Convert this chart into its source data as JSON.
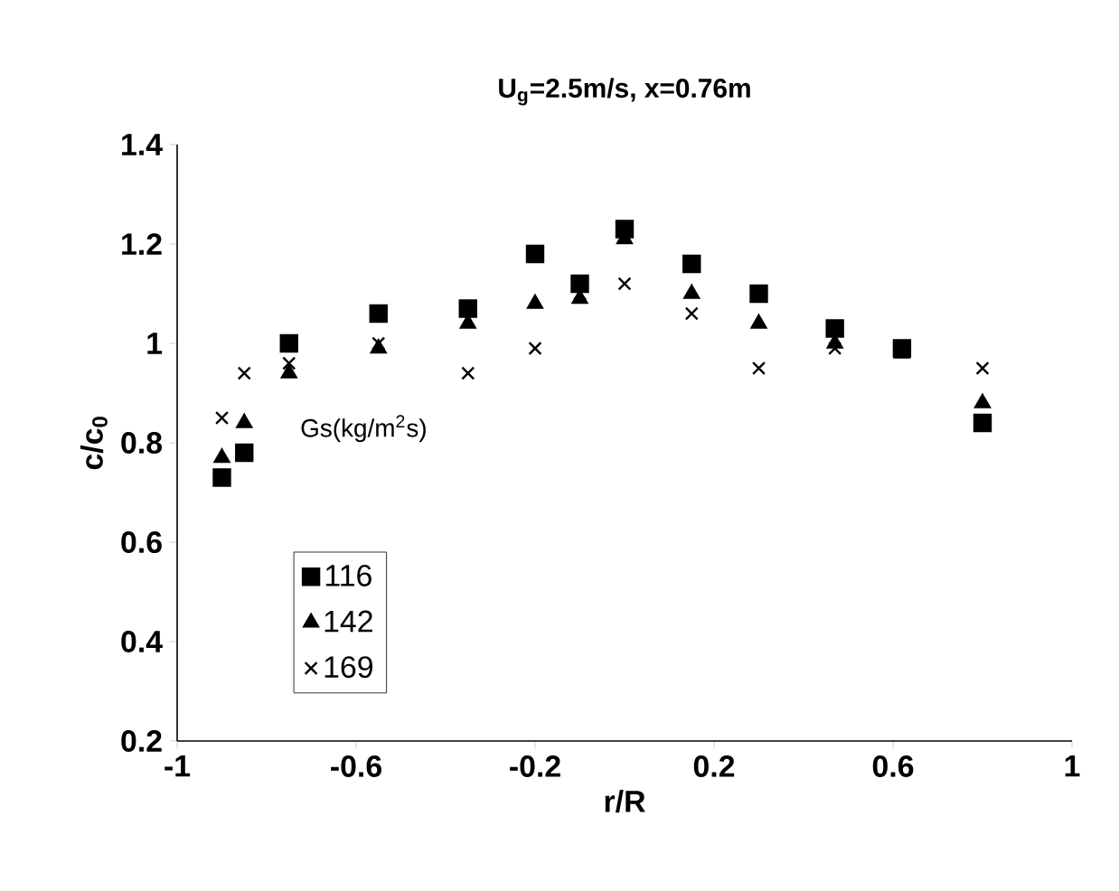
{
  "chart_data": {
    "type": "scatter",
    "title": "U$_{g}$=2.5m/s, x=0.76m",
    "xlabel": "r/R",
    "ylabel": "c/c$_{0}$",
    "legend_title": "Gs(kg/m$^{2}$s)",
    "x": [
      -0.9,
      -0.85,
      -0.75,
      -0.55,
      -0.35,
      -0.2,
      -0.1,
      0,
      0.15,
      0.3,
      0.47,
      0.62,
      0.8
    ],
    "series": [
      {
        "name": "116",
        "color": "#000000",
        "marker": "square",
        "values": [
          0.73,
          0.78,
          1.0,
          1.06,
          1.07,
          1.18,
          1.12,
          1.23,
          1.16,
          1.1,
          1.03,
          0.99,
          0.84
        ]
      },
      {
        "name": "142",
        "color": "#000000",
        "marker": "triangle",
        "values": [
          0.77,
          0.84,
          0.94,
          0.99,
          1.04,
          1.08,
          1.09,
          1.21,
          1.1,
          1.04,
          1.0,
          0.98,
          0.88
        ]
      },
      {
        "name": "169",
        "color": "#000000",
        "marker": "cross",
        "values": [
          0.85,
          0.94,
          0.96,
          1.0,
          0.94,
          0.99,
          1.1,
          1.12,
          1.06,
          0.95,
          0.99,
          null,
          0.95
        ]
      }
    ],
    "xlim": [
      -1,
      1
    ],
    "xticks": [
      -1,
      -0.6,
      -0.2,
      0.2,
      0.6,
      1
    ],
    "ylim": [
      0.2,
      1.4
    ],
    "yticks": [
      0.2,
      0.4,
      0.6,
      0.8,
      1,
      1.2,
      1.4
    ],
    "grid": false,
    "legend": "left"
  }
}
